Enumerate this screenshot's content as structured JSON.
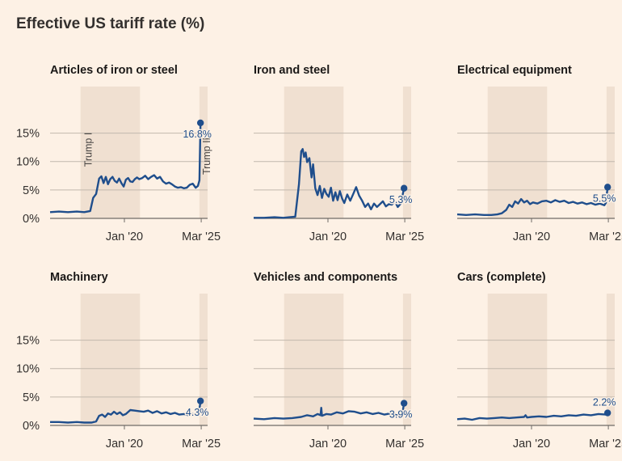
{
  "chart_data": {
    "type": "line",
    "title": "Effective US tariff rate (%)",
    "x_tick_labels": [
      "Jan '20",
      "Mar '25"
    ],
    "y_tick_labels": [
      "0%",
      "5%",
      "10%",
      "15%"
    ],
    "y_ticks": [
      0,
      5,
      10,
      15
    ],
    "ylim": [
      0,
      18.5
    ],
    "x_range": [
      2015.0,
      2025.6
    ],
    "x_ticks": [
      2020.0,
      2025.17
    ],
    "shaded_periods": [
      {
        "label": "Trump I",
        "start": 2017.05,
        "end": 2021.05
      },
      {
        "label": "Trump II",
        "start": 2025.05,
        "end": 2025.6
      }
    ],
    "colors": {
      "line": "#1f4e8c",
      "shade": "#f0e0d1",
      "grid": "#c2b8ad",
      "axis": "#6f6b67"
    },
    "series": [
      {
        "name": "Articles of iron or steel",
        "label": "16.8%",
        "x": [
          2015.0,
          2015.6,
          2016.2,
          2016.8,
          2017.3,
          2017.7,
          2017.9,
          2018.1,
          2018.3,
          2018.45,
          2018.6,
          2018.75,
          2018.9,
          2019.05,
          2019.2,
          2019.35,
          2019.5,
          2019.65,
          2019.8,
          2019.95,
          2020.1,
          2020.25,
          2020.4,
          2020.55,
          2020.7,
          2020.85,
          2021.0,
          2021.2,
          2021.4,
          2021.6,
          2021.8,
          2022.0,
          2022.2,
          2022.4,
          2022.6,
          2022.8,
          2023.0,
          2023.2,
          2023.4,
          2023.6,
          2023.8,
          2024.0,
          2024.2,
          2024.4,
          2024.6,
          2024.8,
          2024.95,
          2025.05,
          2025.12
        ],
        "y": [
          1.1,
          1.2,
          1.1,
          1.2,
          1.1,
          1.3,
          3.6,
          4.3,
          7.0,
          7.4,
          6.2,
          7.3,
          6.0,
          6.9,
          7.3,
          6.6,
          6.3,
          7.0,
          6.2,
          5.6,
          6.8,
          7.1,
          6.5,
          6.4,
          6.9,
          7.2,
          6.9,
          7.1,
          7.5,
          6.9,
          7.3,
          7.6,
          7.0,
          7.3,
          6.5,
          6.1,
          6.3,
          6.0,
          5.6,
          5.4,
          5.5,
          5.3,
          5.4,
          5.9,
          6.1,
          5.4,
          5.7,
          6.7,
          16.8
        ]
      },
      {
        "name": "Iron and steel",
        "label": "5.3%",
        "x": [
          2015.0,
          2015.7,
          2016.4,
          2017.0,
          2017.4,
          2017.8,
          2018.05,
          2018.2,
          2018.3,
          2018.4,
          2018.5,
          2018.6,
          2018.75,
          2018.9,
          2019.0,
          2019.15,
          2019.3,
          2019.45,
          2019.6,
          2019.75,
          2019.9,
          2020.05,
          2020.2,
          2020.35,
          2020.5,
          2020.65,
          2020.8,
          2020.95,
          2021.1,
          2021.3,
          2021.5,
          2021.7,
          2021.9,
          2022.1,
          2022.3,
          2022.5,
          2022.7,
          2022.9,
          2023.1,
          2023.3,
          2023.5,
          2023.7,
          2023.9,
          2024.1,
          2024.3,
          2024.5,
          2024.7,
          2024.9,
          2025.12
        ],
        "y": [
          0.1,
          0.1,
          0.2,
          0.1,
          0.2,
          0.3,
          6.0,
          11.8,
          12.2,
          10.8,
          11.6,
          9.9,
          10.6,
          7.2,
          9.5,
          5.3,
          4.1,
          5.7,
          3.6,
          5.2,
          4.3,
          3.8,
          5.4,
          3.1,
          4.6,
          3.2,
          4.8,
          3.5,
          2.7,
          4.2,
          3.1,
          4.3,
          5.5,
          4.0,
          3.1,
          2.0,
          2.6,
          1.6,
          2.6,
          2.0,
          2.5,
          3.0,
          2.1,
          2.5,
          2.4,
          3.0,
          2.0,
          2.6,
          5.3
        ]
      },
      {
        "name": "Electrical equipment",
        "label": "5.5%",
        "x": [
          2015.0,
          2015.6,
          2016.2,
          2016.8,
          2017.3,
          2017.7,
          2018.0,
          2018.3,
          2018.5,
          2018.7,
          2018.9,
          2019.1,
          2019.3,
          2019.5,
          2019.7,
          2019.9,
          2020.1,
          2020.4,
          2020.7,
          2021.0,
          2021.3,
          2021.6,
          2021.9,
          2022.2,
          2022.5,
          2022.8,
          2023.1,
          2023.4,
          2023.7,
          2024.0,
          2024.3,
          2024.6,
          2024.9,
          2025.0,
          2025.12
        ],
        "y": [
          0.7,
          0.6,
          0.7,
          0.6,
          0.6,
          0.7,
          0.9,
          1.5,
          2.4,
          2.0,
          3.0,
          2.6,
          3.4,
          2.8,
          3.1,
          2.5,
          2.8,
          2.6,
          3.0,
          3.1,
          2.8,
          3.2,
          2.9,
          3.1,
          2.7,
          2.9,
          2.6,
          2.8,
          2.5,
          2.7,
          2.4,
          2.6,
          2.3,
          2.7,
          5.5
        ]
      },
      {
        "name": "Machinery",
        "label": "4.3%",
        "x": [
          2015.0,
          2015.6,
          2016.2,
          2016.8,
          2017.3,
          2017.8,
          2018.1,
          2018.3,
          2018.5,
          2018.7,
          2018.9,
          2019.1,
          2019.3,
          2019.5,
          2019.7,
          2019.9,
          2020.1,
          2020.4,
          2020.7,
          2021.0,
          2021.3,
          2021.6,
          2021.9,
          2022.2,
          2022.5,
          2022.8,
          2023.1,
          2023.4,
          2023.7,
          2024.0,
          2024.3,
          2024.6,
          2024.9,
          2025.0,
          2025.12
        ],
        "y": [
          0.6,
          0.6,
          0.5,
          0.6,
          0.5,
          0.5,
          0.7,
          1.7,
          1.9,
          1.5,
          2.1,
          1.9,
          2.4,
          2.0,
          2.3,
          1.8,
          2.0,
          2.7,
          2.6,
          2.5,
          2.4,
          2.6,
          2.2,
          2.5,
          2.1,
          2.3,
          2.0,
          2.2,
          1.9,
          2.0,
          1.8,
          2.0,
          1.7,
          1.8,
          4.3
        ]
      },
      {
        "name": "Vehicles and components",
        "label": "3.9%",
        "x": [
          2015.0,
          2015.7,
          2016.4,
          2017.0,
          2017.6,
          2018.2,
          2018.6,
          2019.0,
          2019.3,
          2019.5,
          2019.55,
          2019.6,
          2019.9,
          2020.2,
          2020.6,
          2021.0,
          2021.4,
          2021.8,
          2022.2,
          2022.6,
          2023.0,
          2023.4,
          2023.8,
          2024.2,
          2024.6,
          2025.0,
          2025.12
        ],
        "y": [
          1.2,
          1.1,
          1.3,
          1.2,
          1.3,
          1.5,
          1.8,
          1.6,
          2.0,
          1.8,
          3.1,
          1.7,
          2.0,
          1.9,
          2.3,
          2.1,
          2.5,
          2.4,
          2.1,
          2.3,
          2.0,
          2.2,
          1.9,
          2.1,
          1.8,
          2.0,
          3.9
        ]
      },
      {
        "name": "Cars (complete)",
        "label": "2.2%",
        "x": [
          2015.0,
          2015.5,
          2016.0,
          2016.5,
          2017.0,
          2017.5,
          2018.0,
          2018.5,
          2019.0,
          2019.5,
          2019.6,
          2019.7,
          2020.0,
          2020.5,
          2021.0,
          2021.5,
          2022.0,
          2022.5,
          2023.0,
          2023.5,
          2024.0,
          2024.5,
          2025.0,
          2025.12
        ],
        "y": [
          1.1,
          1.2,
          1.0,
          1.3,
          1.2,
          1.3,
          1.4,
          1.3,
          1.4,
          1.5,
          1.8,
          1.4,
          1.5,
          1.6,
          1.5,
          1.7,
          1.6,
          1.8,
          1.7,
          1.9,
          1.8,
          2.0,
          1.9,
          2.2
        ]
      }
    ]
  }
}
